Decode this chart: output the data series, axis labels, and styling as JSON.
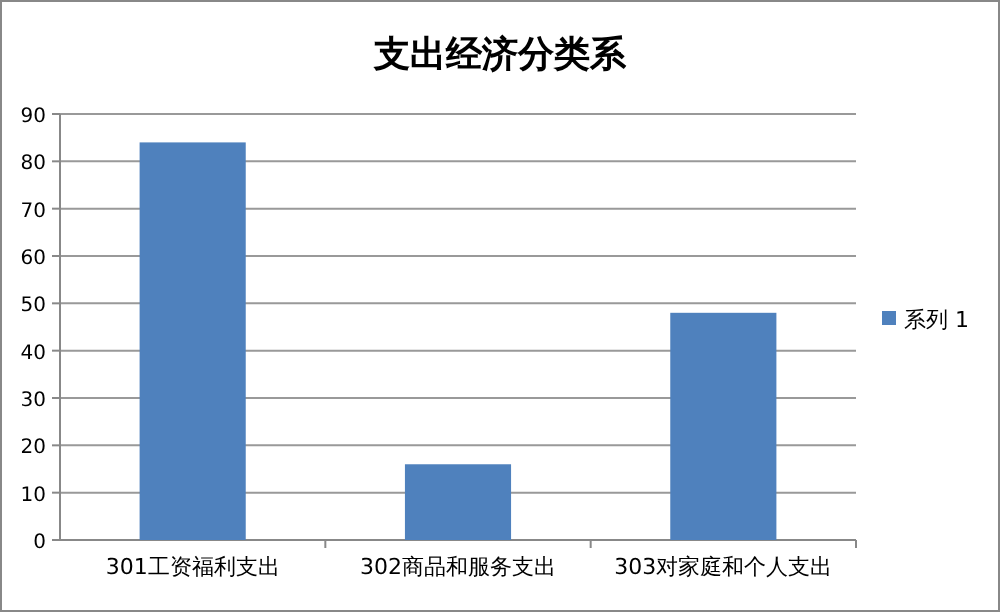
{
  "chart_data": {
    "type": "bar",
    "title": "支出经济分类系",
    "categories": [
      "301工资福利支出",
      "302商品和服务支出",
      "303对家庭和个人支出"
    ],
    "series": [
      {
        "name": "系列 1",
        "color": "#4f81bd",
        "values": [
          84,
          16,
          48
        ]
      }
    ],
    "ylim": [
      0,
      90
    ],
    "yticks": [
      0,
      10,
      20,
      30,
      40,
      50,
      60,
      70,
      80,
      90
    ],
    "grid": "y",
    "legend": "right"
  }
}
